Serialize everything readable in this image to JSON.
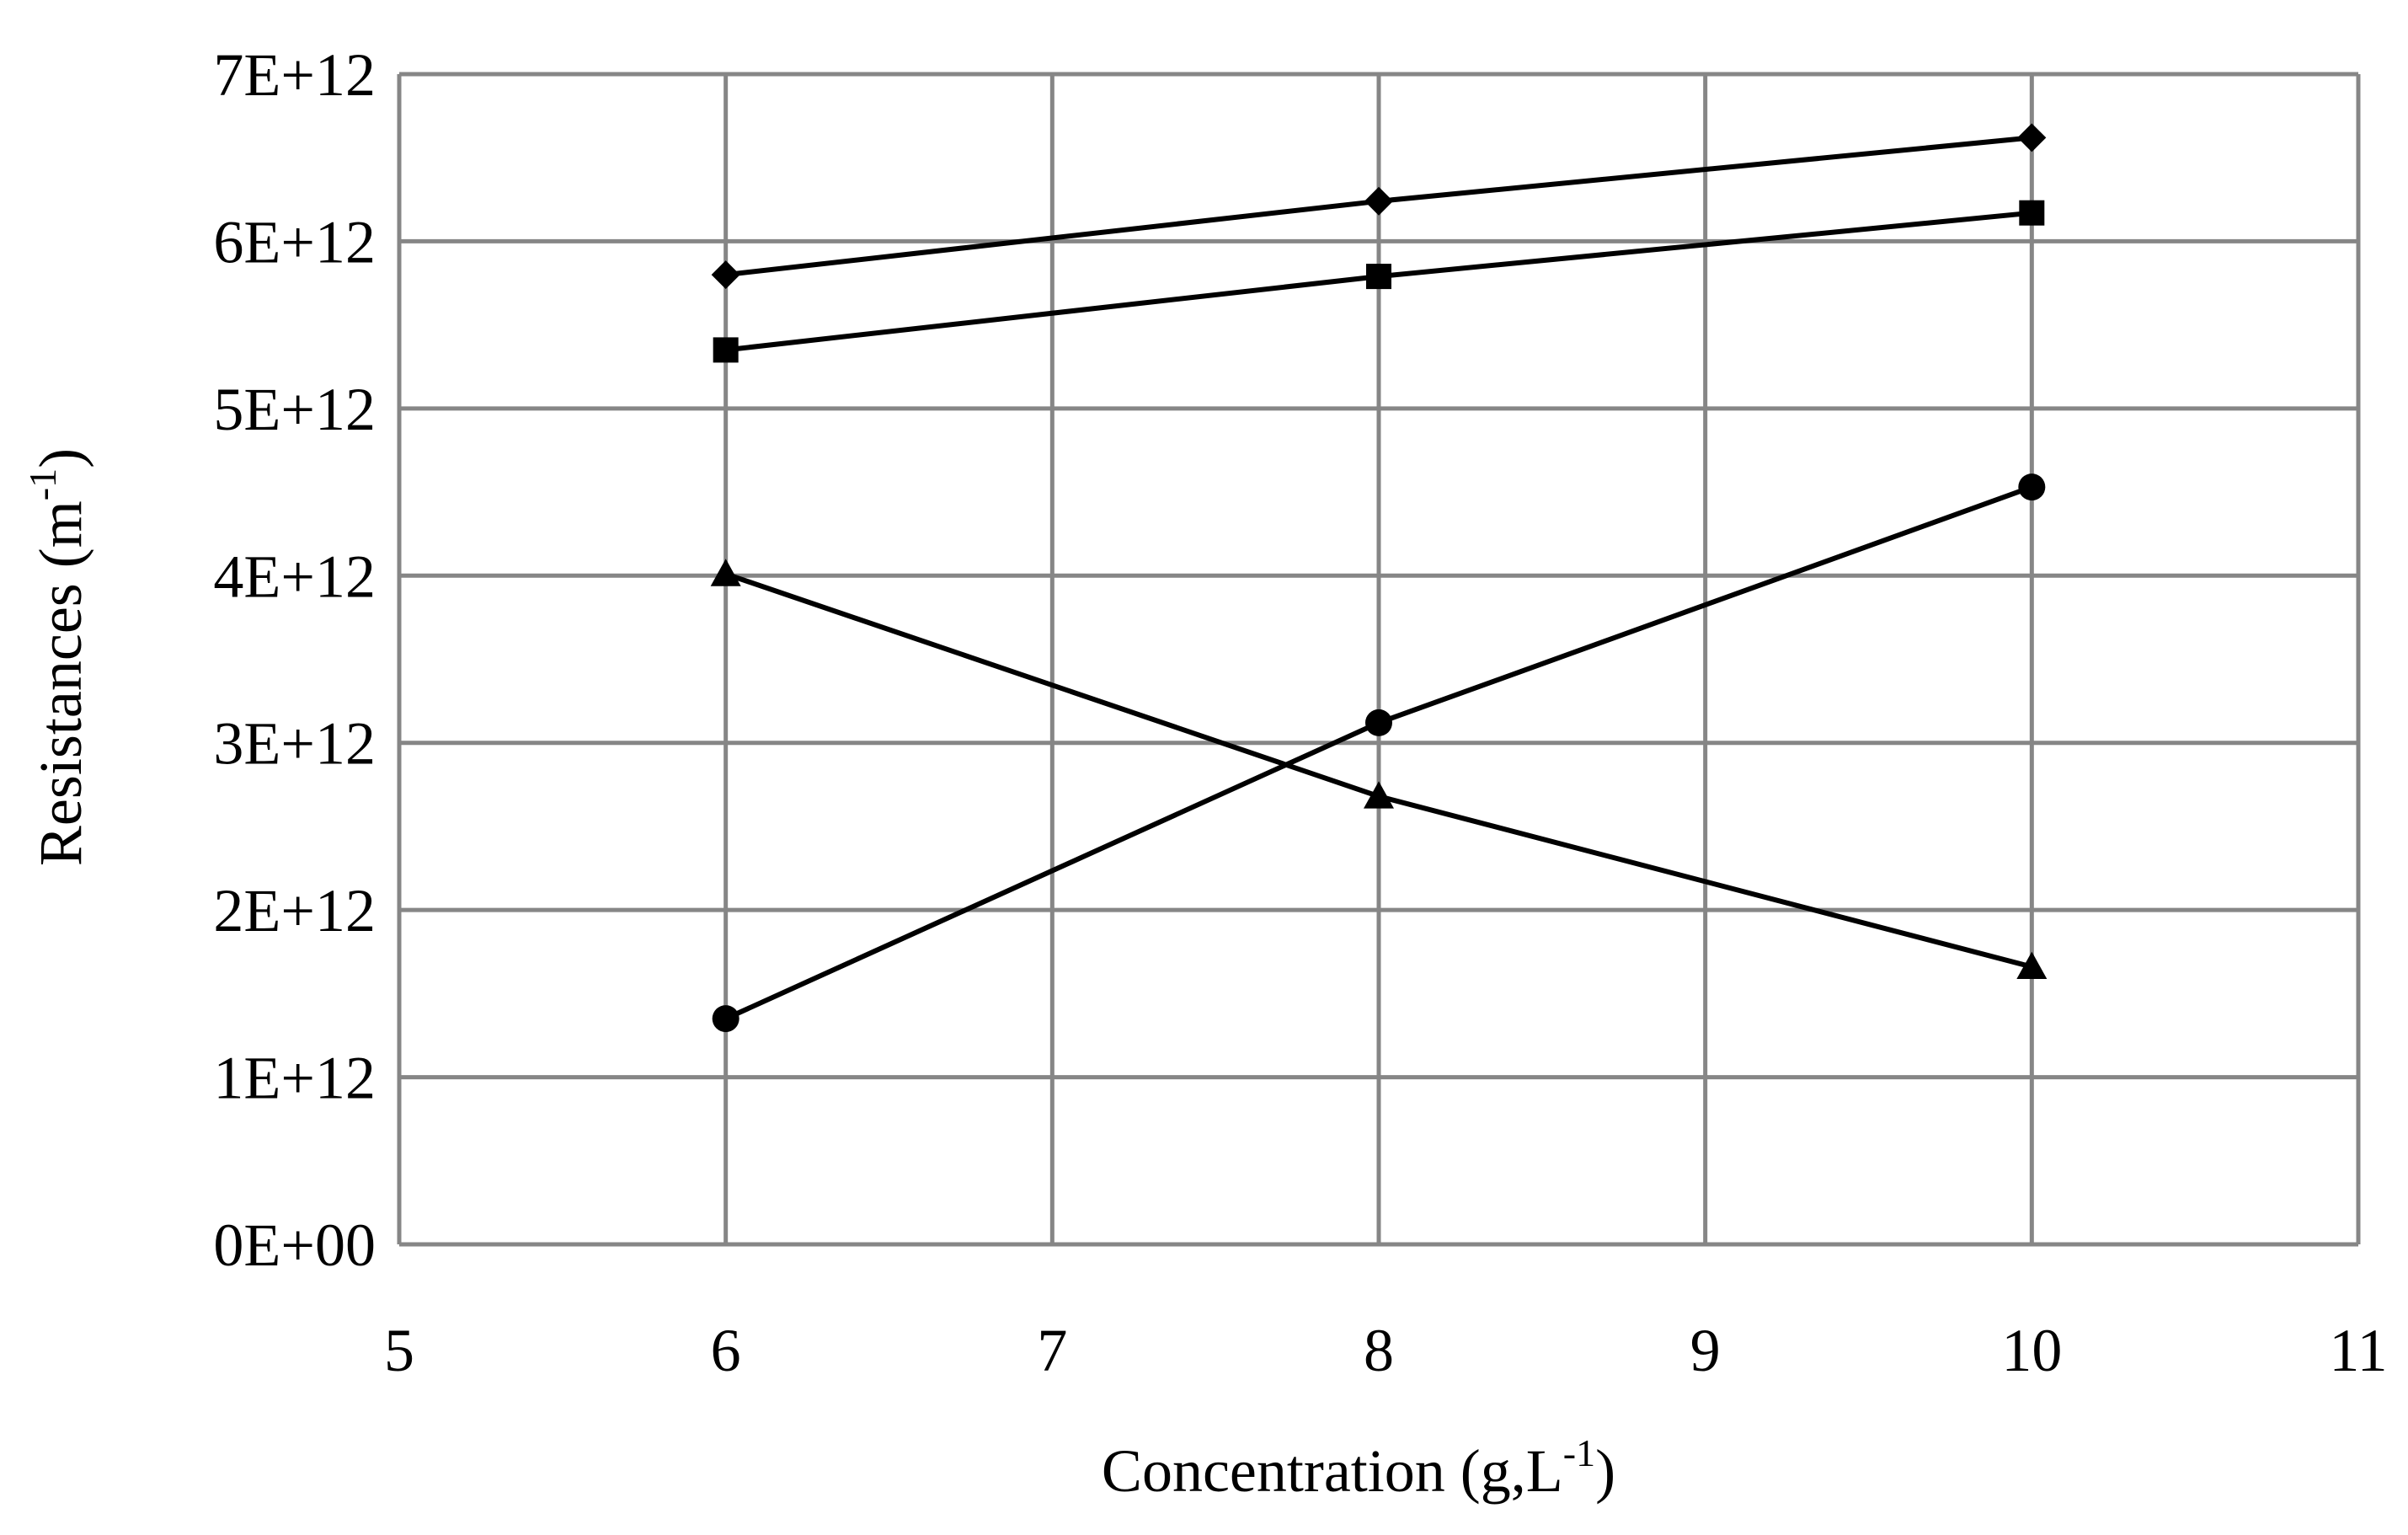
{
  "chart_data": {
    "type": "scatter",
    "title": "",
    "xlabel": {
      "text": "Concentration (g,L",
      "sup": "-1",
      "end": ")"
    },
    "ylabel": {
      "text": "Resistances (m",
      "sup": "-1",
      "end": ")"
    },
    "xlim": [
      5,
      11
    ],
    "ylim": [
      0,
      7000000000000
    ],
    "x_ticks": [
      5,
      6,
      7,
      8,
      9,
      10,
      11
    ],
    "x_tick_labels": [
      "5",
      "6",
      "7",
      "8",
      "9",
      "10",
      "11"
    ],
    "y_ticks": [
      0,
      1000000000000,
      2000000000000,
      3000000000000,
      4000000000000,
      5000000000000,
      6000000000000,
      7000000000000
    ],
    "y_tick_labels": [
      "0E+00",
      "1E+12",
      "2E+12",
      "3E+12",
      "4E+12",
      "5E+12",
      "6E+12",
      "7E+12"
    ],
    "grid": true,
    "legend": "none",
    "series": [
      {
        "marker": "diamond",
        "color": "#000000",
        "x": [
          6,
          8,
          10
        ],
        "y": [
          5800000000000,
          6240000000000,
          6620000000000
        ]
      },
      {
        "marker": "square",
        "color": "#000000",
        "x": [
          6,
          8,
          10
        ],
        "y": [
          5350000000000,
          5790000000000,
          6170000000000
        ]
      },
      {
        "marker": "circle",
        "color": "#000000",
        "x": [
          6,
          8,
          10
        ],
        "y": [
          1350000000000,
          3120000000000,
          4530000000000
        ]
      },
      {
        "marker": "triangle",
        "color": "#000000",
        "x": [
          6,
          8,
          10
        ],
        "y": [
          4010000000000,
          2680000000000,
          1660000000000
        ]
      }
    ]
  }
}
